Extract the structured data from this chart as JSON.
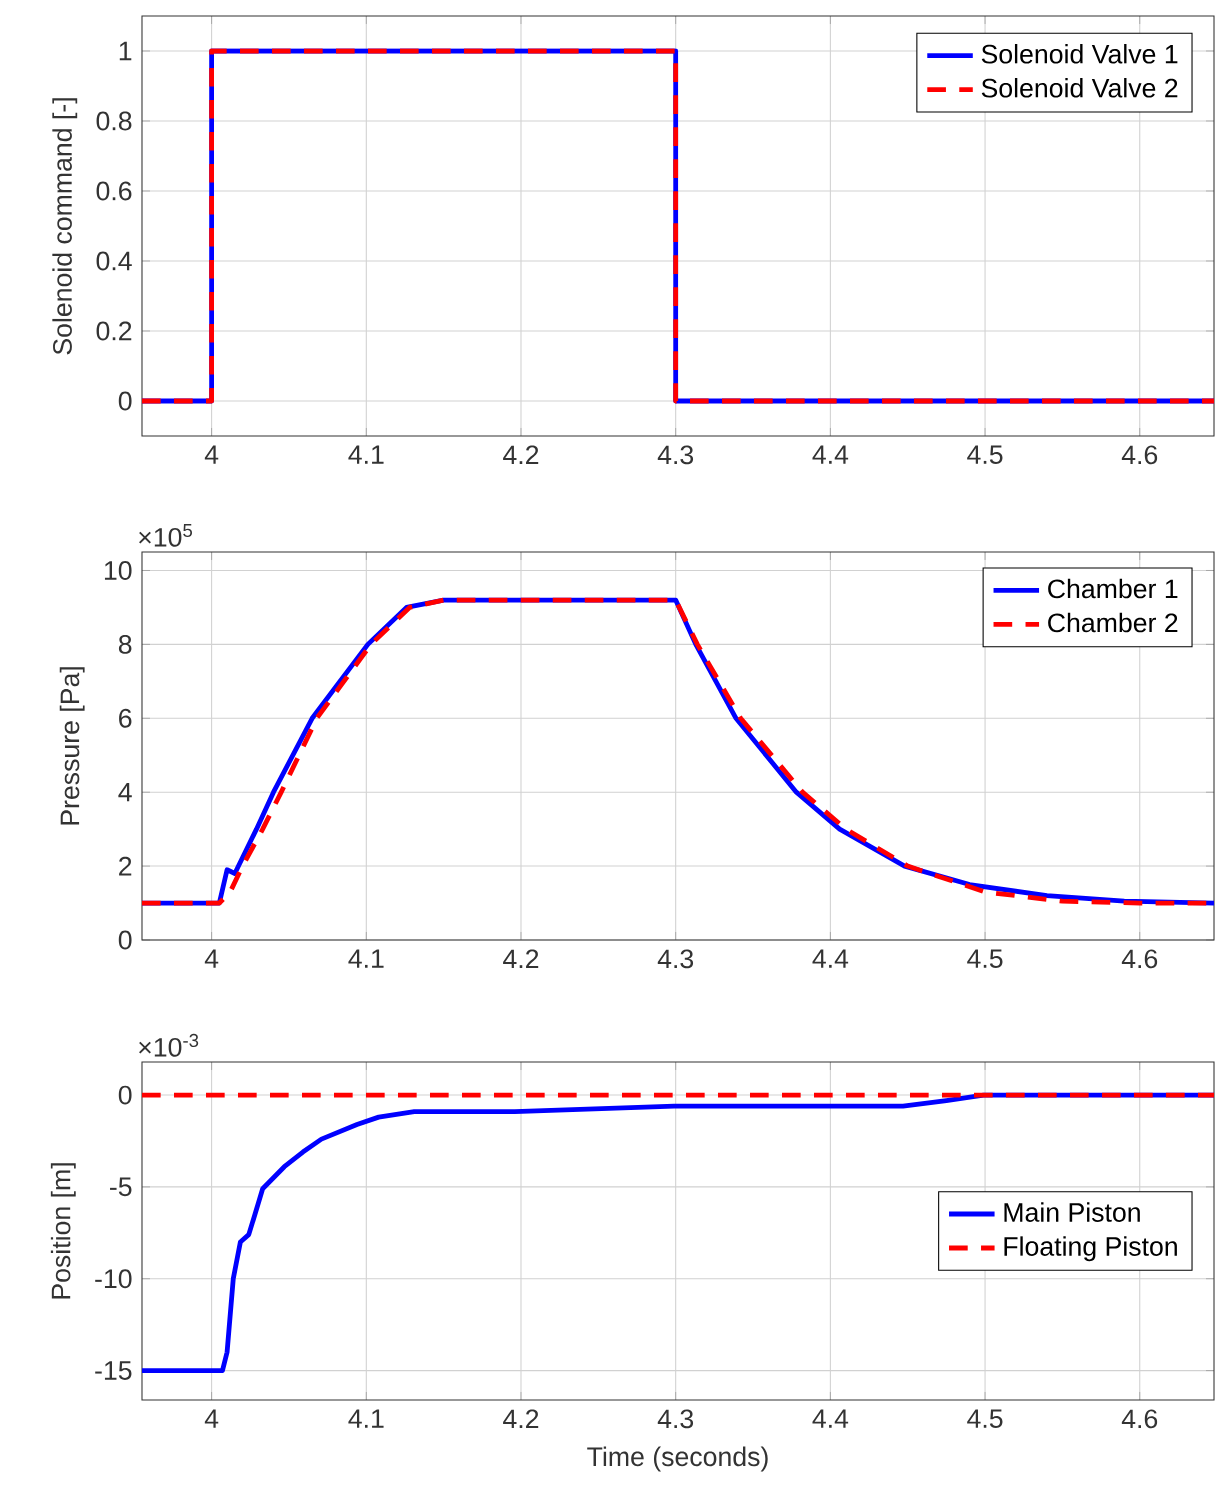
{
  "chart_data": [
    {
      "type": "line",
      "ylabel": "Solenoid command [-]",
      "xlim": [
        3.955,
        4.648
      ],
      "ylim": [
        -0.1,
        1.1
      ],
      "xticks": [
        4,
        4.1,
        4.2,
        4.3,
        4.4,
        4.5,
        4.6
      ],
      "yticks": [
        0,
        0.2,
        0.4,
        0.6,
        0.8,
        1
      ],
      "grid": true,
      "legend": "top right",
      "series": [
        {
          "name": "Solenoid Valve 1",
          "color": "#0000ff",
          "line_style": "solid",
          "x": [
            3.955,
            4.0,
            4.0,
            4.3,
            4.3,
            4.648
          ],
          "values": [
            0,
            0,
            1,
            1,
            0,
            0
          ]
        },
        {
          "name": "Solenoid Valve 2",
          "color": "#ff0000",
          "line_style": "dashed",
          "x": [
            3.955,
            4.0,
            4.0,
            4.3,
            4.3,
            4.648
          ],
          "values": [
            0,
            0,
            1,
            1,
            0,
            0
          ]
        }
      ]
    },
    {
      "type": "line",
      "ylabel": "Pressure [Pa]",
      "annotations": [
        "×10$^{5}$"
      ],
      "xlim": [
        3.955,
        4.648
      ],
      "ylim": [
        0,
        10.5
      ],
      "xticks": [
        4,
        4.1,
        4.2,
        4.3,
        4.4,
        4.5,
        4.6
      ],
      "yticks": [
        0,
        2,
        4,
        6,
        8,
        10
      ],
      "grid": true,
      "legend": "top right",
      "series": [
        {
          "name": "Chamber 1",
          "color": "#0000ff",
          "line_style": "solid",
          "x": [
            3.955,
            4.005,
            4.01,
            4.015,
            4.029,
            4.04,
            4.065,
            4.101,
            4.126,
            4.15,
            4.3,
            4.313,
            4.339,
            4.378,
            4.406,
            4.448,
            4.49,
            4.54,
            4.59,
            4.648
          ],
          "values": [
            1.0,
            1.0,
            1.9,
            1.8,
            3.0,
            4.0,
            6.0,
            8.0,
            9.0,
            9.2,
            9.2,
            8.0,
            6.0,
            4.0,
            3.0,
            2.0,
            1.5,
            1.2,
            1.05,
            1.0
          ]
        },
        {
          "name": "Chamber 2",
          "color": "#ff0000",
          "line_style": "dashed",
          "x": [
            3.955,
            4.005,
            4.012,
            4.02,
            4.033,
            4.045,
            4.068,
            4.103,
            4.128,
            4.15,
            4.3,
            4.314,
            4.342,
            4.382,
            4.41,
            4.45,
            4.5,
            4.55,
            4.6,
            4.648
          ],
          "values": [
            1.0,
            1.0,
            1.3,
            2.0,
            3.0,
            4.0,
            6.0,
            8.0,
            9.0,
            9.2,
            9.2,
            8.0,
            6.0,
            4.0,
            3.0,
            2.0,
            1.3,
            1.05,
            1.0,
            1.0
          ]
        }
      ]
    },
    {
      "type": "line",
      "ylabel": "Position [m]",
      "xlabel": "Time (seconds)",
      "annotations": [
        "×10$^{-3}$"
      ],
      "xlim": [
        3.955,
        4.648
      ],
      "ylim": [
        -16.6,
        1.8
      ],
      "xticks": [
        4,
        4.1,
        4.2,
        4.3,
        4.4,
        4.5,
        4.6
      ],
      "yticks": [
        -15,
        -10,
        -5,
        0
      ],
      "grid": true,
      "legend": "right",
      "series": [
        {
          "name": "Main Piston",
          "color": "#0000ff",
          "line_style": "solid",
          "x": [
            3.955,
            4.007,
            4.01,
            4.014,
            4.0186,
            4.024,
            4.028,
            4.033,
            4.047,
            4.059,
            4.071,
            4.094,
            4.108,
            4.131,
            4.196,
            4.299,
            4.447,
            4.475,
            4.499,
            4.648
          ],
          "values": [
            -15,
            -15,
            -14,
            -10,
            -8,
            -7.6,
            -6.5,
            -5.1,
            -3.9,
            -3.1,
            -2.4,
            -1.6,
            -1.2,
            -0.9,
            -0.9,
            -0.6,
            -0.6,
            -0.3,
            0,
            0
          ]
        },
        {
          "name": "Floating Piston",
          "color": "#ff0000",
          "line_style": "dashed",
          "x": [
            3.955,
            4.648
          ],
          "values": [
            0,
            0
          ]
        }
      ]
    }
  ]
}
